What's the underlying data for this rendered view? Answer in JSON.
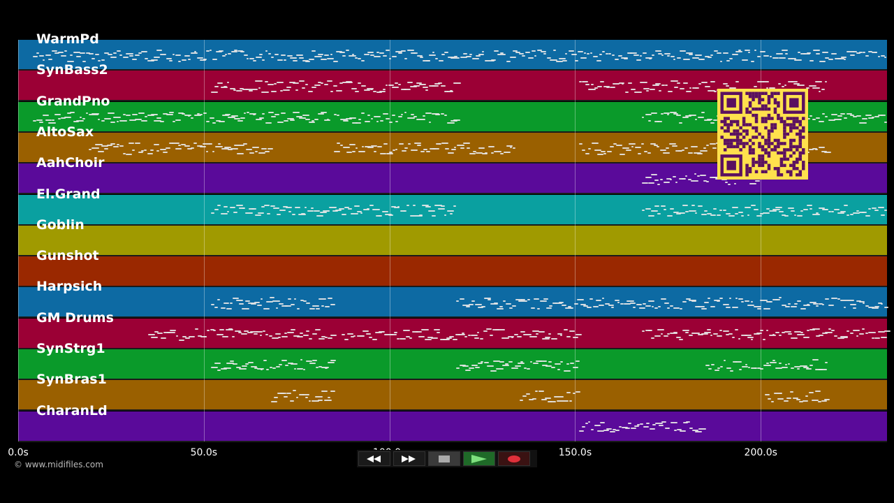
{
  "tracks": [
    {
      "name": "WarmPd",
      "color": "#0d6aa3"
    },
    {
      "name": "SynBass2",
      "color": "#9b0035"
    },
    {
      "name": "GrandPno",
      "color": "#0a9a2a"
    },
    {
      "name": "AltoSax",
      "color": "#9a6000"
    },
    {
      "name": "AahChoir",
      "color": "#5a0a9a"
    },
    {
      "name": "El.Grand",
      "color": "#0aa0a0"
    },
    {
      "name": "Goblin",
      "color": "#a09a00"
    },
    {
      "name": "Gunshot",
      "color": "#9a2800"
    },
    {
      "name": "Harpsich",
      "color": "#0d6aa3"
    },
    {
      "name": "GM Drums",
      "color": "#9b0035"
    },
    {
      "name": "SynStrg1",
      "color": "#0a9a2a"
    },
    {
      "name": "SynBras1",
      "color": "#9a6000"
    },
    {
      "name": "CharanLd",
      "color": "#5a0a9a"
    }
  ],
  "axis": {
    "ticks": [
      "0.0s",
      "50.0s",
      "100.0s",
      "150.0s",
      "200.0s"
    ],
    "tick_values_s": [
      0,
      50,
      100,
      150,
      200
    ],
    "range_s": [
      0,
      234
    ]
  },
  "copyright": "© www.midifiles.com",
  "transport": {
    "buttons": [
      "rewind",
      "fast-forward",
      "stop",
      "play",
      "record"
    ]
  }
}
